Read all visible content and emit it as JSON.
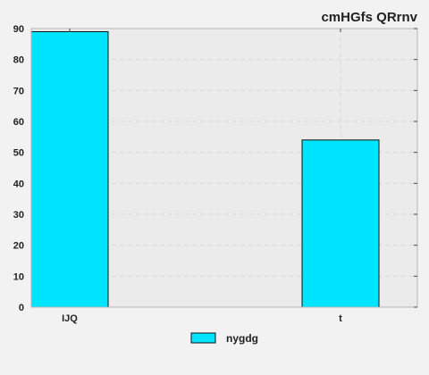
{
  "chart_data": {
    "type": "bar",
    "title": "cmHGfs QRrnv",
    "xlabel": "",
    "ylabel": "",
    "categories": [
      "IJQ",
      "t"
    ],
    "series": [
      {
        "name": "nygdg",
        "values": [
          89,
          54
        ],
        "color": "#00e5ff"
      }
    ],
    "ylim": [
      0,
      90
    ],
    "yticks": [
      0,
      10,
      20,
      30,
      40,
      50,
      60,
      70,
      80,
      90
    ],
    "grid": true,
    "legend_position": "bottom-center",
    "colors": {
      "background": "#f2f2f2",
      "plot_area": "#ebebeb",
      "grid": "#d8d8d8",
      "bar_edge": "#111111"
    }
  }
}
